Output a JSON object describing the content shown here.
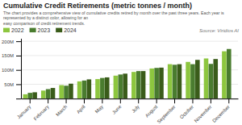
{
  "chart_data": {
    "type": "bar",
    "title": "Cumulative Credit Retirements (metric tonnes / month)",
    "subtitle": "The chart provides a comprehensive view of cumulative credits retired by month over the past three years. Each year is represented by a distinct color, allowing for an\neasy comparison of credit retirement trends.",
    "source": "Source: Viridios AI",
    "categories": [
      "January",
      "February",
      "March",
      "April",
      "May",
      "June",
      "July",
      "August",
      "September",
      "October",
      "November",
      "December"
    ],
    "series": [
      {
        "name": "2022",
        "color": "#8dc63f",
        "values": [
          15,
          28,
          47,
          60,
          68,
          80,
          93,
          105,
          120,
          128,
          140,
          165
        ]
      },
      {
        "name": "2023",
        "color": "#4a7c2f",
        "values": [
          20,
          33,
          45,
          63,
          72,
          84,
          96,
          107,
          118,
          120,
          121,
          173
        ]
      },
      {
        "name": "2024",
        "color": "#3a5c1a",
        "values": [
          22,
          37,
          52,
          67,
          74,
          87,
          96,
          108,
          120,
          135,
          138,
          0
        ]
      }
    ],
    "ylim": [
      0,
      210
    ],
    "yticks": [
      {
        "value": 0,
        "label": ""
      },
      {
        "value": 50,
        "label": "50M"
      },
      {
        "value": 100,
        "label": "100M"
      },
      {
        "value": 150,
        "label": "150M"
      },
      {
        "value": 200,
        "label": "200M"
      }
    ],
    "grid": true,
    "legend": "top-left"
  }
}
